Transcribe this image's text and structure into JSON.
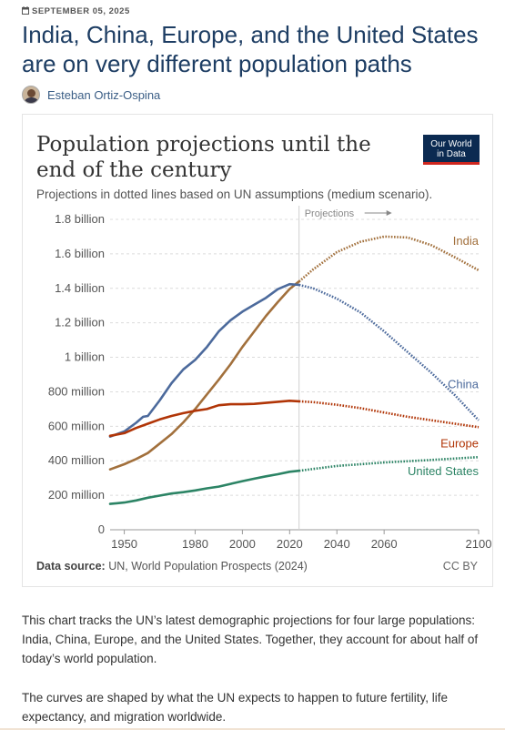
{
  "article": {
    "date": "SEPTEMBER 05, 2025",
    "headline": "India, China, Europe, and the United States are on very different population paths",
    "author": "Esteban Ortiz-Ospina",
    "paragraphs": [
      "This chart tracks the UN’s latest demographic projections for four large populations: India, China, Europe, and the United States. Together, they account for about half of today’s world population.",
      "The curves are shaped by what the UN expects to happen to future fertility, life expectancy, and migration worldwide."
    ]
  },
  "logo": {
    "line1": "Our World",
    "line2": "in Data"
  },
  "icons": {
    "date": "calendar-icon",
    "author": "avatar",
    "projection_arrow": "arrow-right-icon"
  },
  "colors": {
    "India": "#a2703c",
    "China": "#4c6a9c",
    "Europe": "#b13507",
    "United States": "#2c8465",
    "heading": "#1d3d63",
    "logo_bg": "#0b2a51",
    "logo_accent": "#ce261e"
  },
  "chart_data": {
    "type": "line",
    "title": "Population projections until the end of the century",
    "subtitle": "Projections in dotted lines based on UN assumptions (medium scenario).",
    "projection_label": "Projections",
    "projection_start": 2024,
    "source_label": "Data source:",
    "source": "UN, World Population Prospects (2024)",
    "license": "CC BY",
    "x_ticks": [
      1950,
      1980,
      2000,
      2020,
      2040,
      2060,
      2100
    ],
    "xlim": [
      1944,
      2100
    ],
    "ylim": [
      0,
      1800000000
    ],
    "y_ticks": [
      {
        "value": 0,
        "label": "0"
      },
      {
        "value": 200000000,
        "label": "200 million"
      },
      {
        "value": 400000000,
        "label": "400 million"
      },
      {
        "value": 600000000,
        "label": "600 million"
      },
      {
        "value": 800000000,
        "label": "800 million"
      },
      {
        "value": 1000000000,
        "label": "1 billion"
      },
      {
        "value": 1200000000,
        "label": "1.2 billion"
      },
      {
        "value": 1400000000,
        "label": "1.4 billion"
      },
      {
        "value": 1600000000,
        "label": "1.6 billion"
      },
      {
        "value": 1800000000,
        "label": "1.8 billion"
      }
    ],
    "grid": "horizontal dashed",
    "series": [
      {
        "name": "India",
        "historical": [
          [
            1944,
            350000000
          ],
          [
            1950,
            380000000
          ],
          [
            1955,
            410000000
          ],
          [
            1960,
            445000000
          ],
          [
            1965,
            500000000
          ],
          [
            1970,
            555000000
          ],
          [
            1975,
            623000000
          ],
          [
            1980,
            700000000
          ],
          [
            1985,
            785000000
          ],
          [
            1990,
            870000000
          ],
          [
            1995,
            960000000
          ],
          [
            2000,
            1060000000
          ],
          [
            2005,
            1150000000
          ],
          [
            2010,
            1240000000
          ],
          [
            2015,
            1320000000
          ],
          [
            2020,
            1396000000
          ],
          [
            2024,
            1440000000
          ]
        ],
        "projected": [
          [
            2024,
            1440000000
          ],
          [
            2030,
            1510000000
          ],
          [
            2040,
            1610000000
          ],
          [
            2050,
            1670000000
          ],
          [
            2060,
            1700000000
          ],
          [
            2070,
            1695000000
          ],
          [
            2080,
            1650000000
          ],
          [
            2090,
            1580000000
          ],
          [
            2100,
            1505000000
          ]
        ]
      },
      {
        "name": "China",
        "historical": [
          [
            1944,
            540000000
          ],
          [
            1950,
            570000000
          ],
          [
            1955,
            620000000
          ],
          [
            1958,
            655000000
          ],
          [
            1960,
            660000000
          ],
          [
            1965,
            750000000
          ],
          [
            1970,
            850000000
          ],
          [
            1975,
            930000000
          ],
          [
            1980,
            985000000
          ],
          [
            1985,
            1060000000
          ],
          [
            1990,
            1150000000
          ],
          [
            1995,
            1215000000
          ],
          [
            2000,
            1265000000
          ],
          [
            2005,
            1305000000
          ],
          [
            2010,
            1345000000
          ],
          [
            2015,
            1395000000
          ],
          [
            2020,
            1424000000
          ],
          [
            2024,
            1420000000
          ]
        ],
        "projected": [
          [
            2024,
            1420000000
          ],
          [
            2030,
            1400000000
          ],
          [
            2040,
            1340000000
          ],
          [
            2050,
            1260000000
          ],
          [
            2060,
            1150000000
          ],
          [
            2070,
            1030000000
          ],
          [
            2080,
            910000000
          ],
          [
            2090,
            780000000
          ],
          [
            2100,
            635000000
          ]
        ]
      },
      {
        "name": "Europe",
        "historical": [
          [
            1944,
            545000000
          ],
          [
            1950,
            560000000
          ],
          [
            1955,
            590000000
          ],
          [
            1960,
            615000000
          ],
          [
            1965,
            640000000
          ],
          [
            1970,
            660000000
          ],
          [
            1975,
            676000000
          ],
          [
            1980,
            690000000
          ],
          [
            1985,
            700000000
          ],
          [
            1990,
            722000000
          ],
          [
            1995,
            728000000
          ],
          [
            2000,
            728000000
          ],
          [
            2005,
            730000000
          ],
          [
            2010,
            736000000
          ],
          [
            2015,
            742000000
          ],
          [
            2020,
            748000000
          ],
          [
            2024,
            745000000
          ]
        ],
        "projected": [
          [
            2024,
            745000000
          ],
          [
            2030,
            740000000
          ],
          [
            2040,
            725000000
          ],
          [
            2050,
            705000000
          ],
          [
            2060,
            680000000
          ],
          [
            2070,
            655000000
          ],
          [
            2080,
            635000000
          ],
          [
            2090,
            615000000
          ],
          [
            2100,
            595000000
          ]
        ]
      },
      {
        "name": "United States",
        "historical": [
          [
            1944,
            150000000
          ],
          [
            1950,
            158000000
          ],
          [
            1955,
            170000000
          ],
          [
            1960,
            186000000
          ],
          [
            1965,
            198000000
          ],
          [
            1970,
            210000000
          ],
          [
            1975,
            218000000
          ],
          [
            1980,
            228000000
          ],
          [
            1985,
            240000000
          ],
          [
            1990,
            250000000
          ],
          [
            1995,
            266000000
          ],
          [
            2000,
            282000000
          ],
          [
            2005,
            296000000
          ],
          [
            2010,
            310000000
          ],
          [
            2015,
            322000000
          ],
          [
            2020,
            336000000
          ],
          [
            2024,
            342000000
          ]
        ],
        "projected": [
          [
            2024,
            342000000
          ],
          [
            2040,
            370000000
          ],
          [
            2060,
            390000000
          ],
          [
            2080,
            405000000
          ],
          [
            2100,
            421000000
          ]
        ]
      }
    ]
  }
}
